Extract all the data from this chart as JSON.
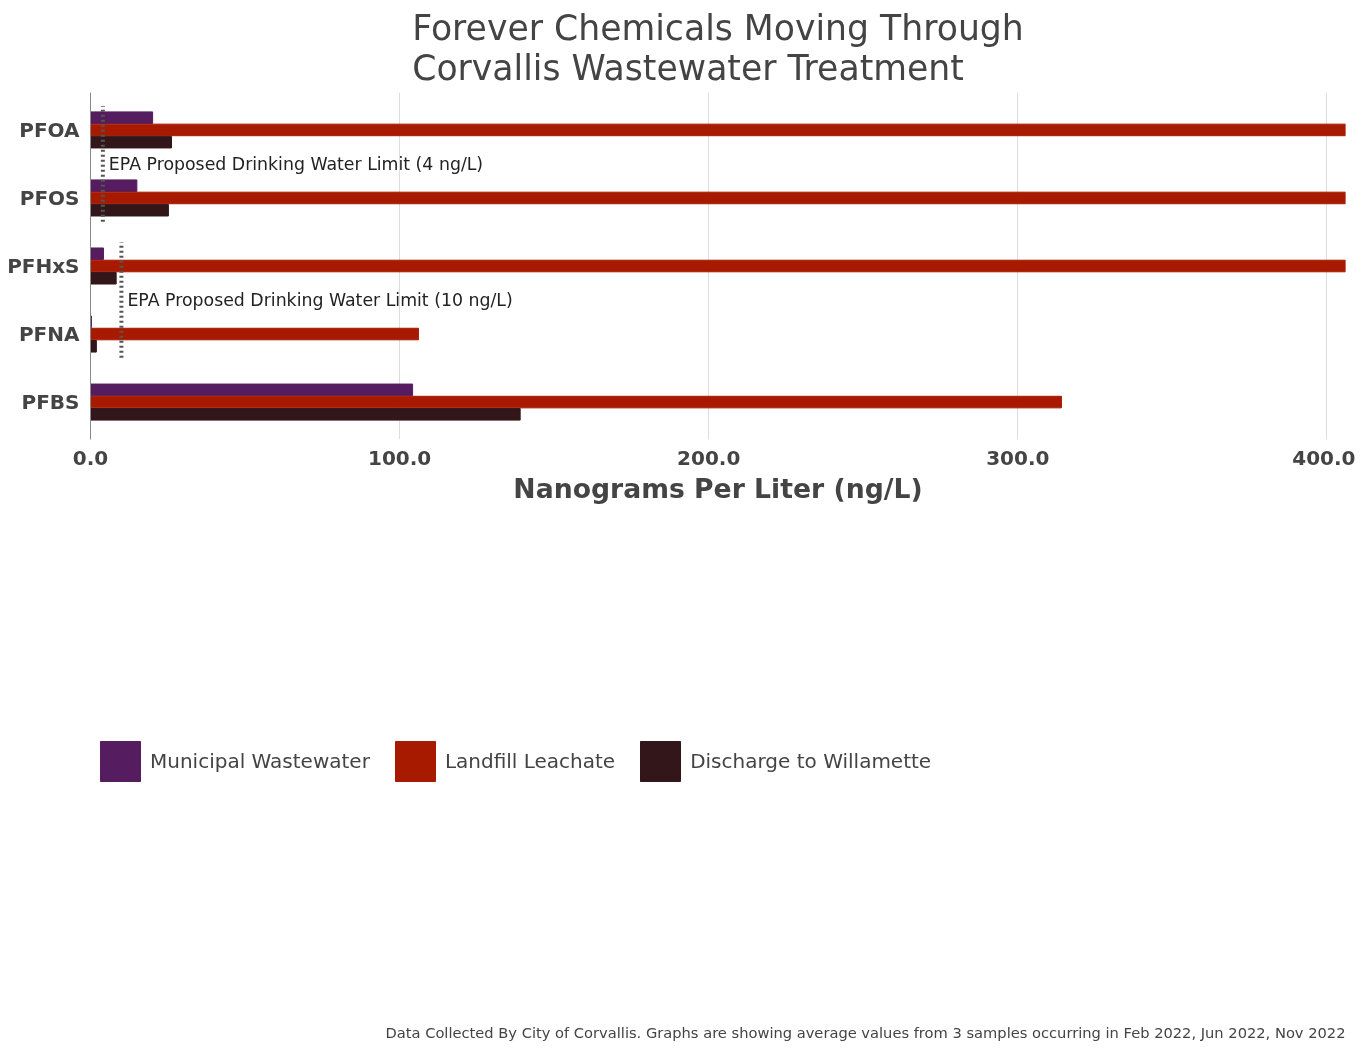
{
  "chart_data": {
    "type": "bar",
    "orientation": "horizontal",
    "title": "Forever Chemicals Moving Through Corvallis Wastewater Treatment",
    "xlabel": "Nanograms Per Liter (ng/L)",
    "categories": [
      "PFOA",
      "PFOS",
      "PFHxS",
      "PFNA",
      "PFBS"
    ],
    "series": [
      {
        "name": "Municipal Wastewater",
        "color": "#551c5f",
        "values": [
          20.1,
          15.0,
          4.2,
          0.3,
          104.2
        ]
      },
      {
        "name": "Landfill Leachate",
        "color": "#a81a00",
        "values": [
          406,
          406,
          406,
          106.1,
          314.1
        ]
      },
      {
        "name": "Discharge to Willamette",
        "color": "#33161a",
        "values": [
          26.2,
          25.2,
          8.3,
          1.9,
          139.0
        ]
      }
    ],
    "xlim": [
      0,
      406
    ],
    "xticks": [
      {
        "value": 0,
        "label": "0.0"
      },
      {
        "value": 100,
        "label": "100.0"
      },
      {
        "value": 200,
        "label": "200.0"
      },
      {
        "value": 300,
        "label": "300.0"
      },
      {
        "value": 400,
        "label": "400.0"
      }
    ],
    "grid": "x",
    "legend": "bottom",
    "ref_lines": [
      {
        "axis": "x",
        "value": 4,
        "label": "EPA  Proposed Drinking Water Limit (4 ng/L)",
        "color": "#555555",
        "line_style": "dotted"
      },
      {
        "axis": "x",
        "value": 10,
        "label": "EPA  Proposed Drinking Water Limit (10 ng/L)",
        "color": "#555555",
        "line_style": "dotted"
      }
    ],
    "annotations": [
      "Data Collected By City of Corvallis. Graphs are showing average values from 3 samples occurring in Feb 2022, Jun 2022, Nov 2022"
    ]
  }
}
